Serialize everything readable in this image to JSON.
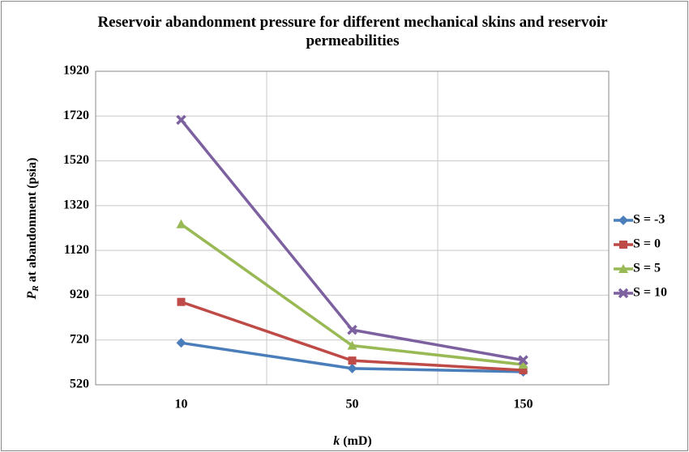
{
  "chart_data": {
    "type": "line",
    "title": "Reservoir abandonment pressure for different mechanical skins and reservoir permeabilities",
    "x_label": {
      "symbol": "k",
      "text": " (mD)"
    },
    "y_label": {
      "symbol": "P",
      "subscript": "R",
      "text": " at abandonment  (psia)"
    },
    "categories": [
      "10",
      "50",
      "150"
    ],
    "series": [
      {
        "name": "S = -3",
        "color": "#4a7ebb",
        "marker": "diamond",
        "values": [
          707,
          593,
          578
        ]
      },
      {
        "name": "S = 0",
        "color": "#be4b48",
        "marker": "square",
        "values": [
          890,
          628,
          585
        ]
      },
      {
        "name": "S = 5",
        "color": "#98b954",
        "marker": "triangle",
        "values": [
          1237,
          695,
          610
        ]
      },
      {
        "name": "S = 10",
        "color": "#7d60a0",
        "marker": "x",
        "values": [
          1703,
          765,
          630
        ]
      }
    ],
    "ylim": [
      520,
      1920
    ],
    "yticks": [
      520,
      720,
      920,
      1120,
      1320,
      1520,
      1720,
      1920
    ],
    "grid": true,
    "legend": "right"
  }
}
